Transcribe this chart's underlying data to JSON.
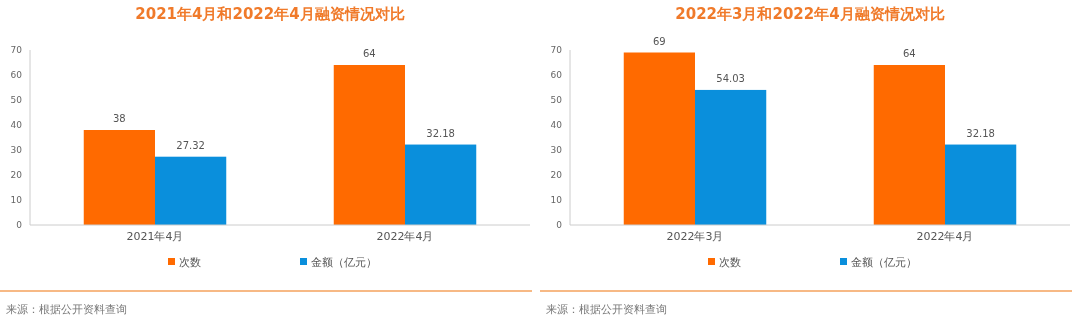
{
  "chart_data": [
    {
      "type": "bar",
      "title": "2021年4月和2022年4月融资情况对比",
      "categories": [
        "2021年4月",
        "2022年4月"
      ],
      "series": [
        {
          "name": "次数",
          "color": "#ff6a00",
          "values": [
            38,
            64
          ]
        },
        {
          "name": "金额（亿元）",
          "color": "#0a8fdc",
          "values": [
            27.32,
            32.18
          ]
        }
      ],
      "ylim": [
        0,
        70
      ],
      "yticks": [
        0,
        10,
        20,
        30,
        40,
        50,
        60,
        70
      ],
      "data_labels": true,
      "legend": "bottom",
      "grid": false,
      "annotations": [
        "来源：根据公开资料查询"
      ]
    },
    {
      "type": "bar",
      "title": "2022年3月和2022年4月融资情况对比",
      "categories": [
        "2022年3月",
        "2022年4月"
      ],
      "series": [
        {
          "name": "次数",
          "color": "#ff6a00",
          "values": [
            69,
            64
          ]
        },
        {
          "name": "金额（亿元）",
          "color": "#0a8fdc",
          "values": [
            54.03,
            32.18
          ]
        }
      ],
      "ylim": [
        0,
        70
      ],
      "yticks": [
        0,
        10,
        20,
        30,
        40,
        50,
        60,
        70
      ],
      "data_labels": true,
      "legend": "bottom",
      "grid": false,
      "annotations": [
        "来源：根据公开资料查询"
      ]
    }
  ]
}
